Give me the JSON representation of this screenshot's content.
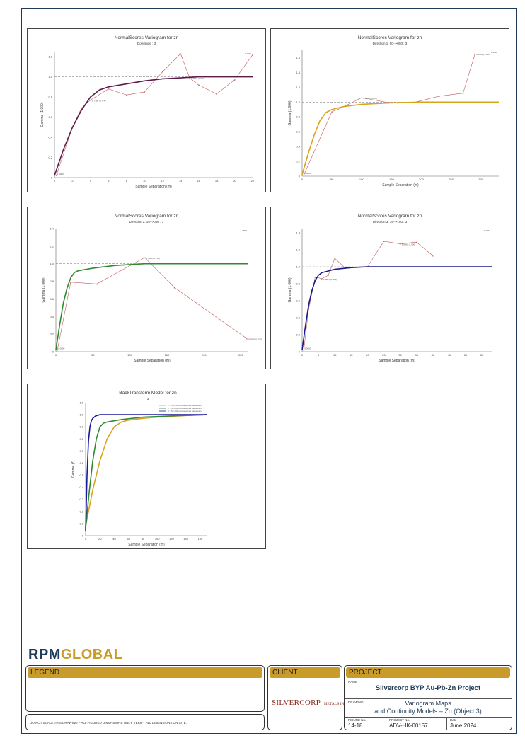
{
  "charts": [
    {
      "title": "NormalScores  Variogram for zn",
      "subtitle": "Downhole : 3",
      "xlabel": "Sample Separation (m)",
      "ylabel": "Gamma (1.000)",
      "x_ticks": [
        "0",
        "2",
        "4",
        "6",
        "8",
        "10",
        "12",
        "14",
        "16",
        "18",
        "20",
        "22"
      ],
      "y_ticks": [
        "0",
        "0.2",
        "0.4",
        "0.6",
        "0.8",
        "1.0",
        "1.2"
      ],
      "first_label": "0.0000",
      "near_label": "0.7766 (0.774)",
      "sill_label": "0.9894 (0.997)",
      "top_label": "1.2345",
      "model_color": "#5a1a4a",
      "exp_color": "#c25a5a"
    },
    {
      "title": "NormalScores  Variogram for zn",
      "subtitle": "Direction 1: 00-->050 : 3",
      "xlabel": "Sample Separation (m)",
      "ylabel": "Gamma (1.000)",
      "x_ticks": [
        "0",
        "50",
        "100",
        "150",
        "200",
        "250",
        "300"
      ],
      "y_ticks": [
        "0",
        "0.2",
        "0.4",
        "0.6",
        "0.8",
        "1.0",
        "1.2",
        "1.4",
        "1.6"
      ],
      "first_label": "0.0000",
      "near_label": "0.8853 (0.880)",
      "sill_label": "0.9924 (1.000)",
      "top_label": "1.6540",
      "model_color": "#d9a31a",
      "exp_color": "#c25a5a"
    },
    {
      "title": "NormalScores  Variogram for zn",
      "subtitle": "Direction 2: 15-->060 : 3",
      "xlabel": "Sample Separation (m)",
      "ylabel": "Gamma (1.000)",
      "x_ticks": [
        "0",
        "50",
        "100",
        "150",
        "200",
        "250"
      ],
      "y_ticks": [
        "0",
        "0.2",
        "0.4",
        "0.6",
        "0.8",
        "1.0",
        "1.2",
        "1.4"
      ],
      "first_label": "0.0000",
      "near_label": "0.7890 (0.745)",
      "sill_label": "0.9920 (1.000)",
      "top_label": "1.0834",
      "model_color": "#2e8a2e",
      "exp_color": "#c25a5a"
    },
    {
      "title": "NormalScores  Variogram for zn",
      "subtitle": "Direction 3: 75-->160 : 3",
      "xlabel": "Sample Separation (m)",
      "ylabel": "Gamma (1.000)",
      "x_ticks": [
        "0",
        "5",
        "10",
        "15",
        "20",
        "25",
        "30",
        "35",
        "40",
        "45",
        "50",
        "55"
      ],
      "y_ticks": [
        "0",
        "0.2",
        "0.4",
        "0.6",
        "0.8",
        "1.0",
        "1.2",
        "1.4"
      ],
      "first_label": "0.0000",
      "near_label": "0.8654 (0.836)",
      "sill_label": "1.0050 (1.000)",
      "top_label": "1.2832",
      "model_color": "#1a1a8a",
      "exp_color": "#c25a5a"
    }
  ],
  "chart_data": [
    {
      "type": "line",
      "title": "NormalScores  Variogram for zn",
      "subtitle": "Downhole : 3",
      "xlabel": "Sample Separation (m)",
      "ylabel": "Gamma (1.000)",
      "xlim": [
        0,
        22
      ],
      "ylim": [
        0,
        1.25
      ],
      "sill": 1.0,
      "series": [
        {
          "name": "experimental",
          "x": [
            0.2,
            2,
            3,
            4,
            6,
            8,
            10,
            12,
            14,
            15,
            16,
            18,
            20,
            22
          ],
          "values": [
            0.02,
            0.5,
            0.69,
            0.77,
            0.88,
            0.82,
            0.85,
            1.05,
            1.23,
            0.99,
            0.92,
            0.83,
            0.97,
            1.22
          ]
        },
        {
          "name": "model",
          "x": [
            0,
            1,
            2,
            3,
            4,
            5,
            6,
            8,
            10,
            12,
            14,
            16,
            18,
            20,
            22
          ],
          "values": [
            0.02,
            0.28,
            0.5,
            0.67,
            0.8,
            0.87,
            0.9,
            0.93,
            0.96,
            0.98,
            0.99,
            1.0,
            1.0,
            1.0,
            1.0
          ]
        }
      ]
    },
    {
      "type": "line",
      "title": "NormalScores  Variogram for zn",
      "subtitle": "Direction 1: 00-->050 : 3",
      "xlabel": "Sample Separation (m)",
      "ylabel": "Gamma (1.000)",
      "xlim": [
        0,
        330
      ],
      "ylim": [
        0,
        1.7
      ],
      "sill": 1.0,
      "series": [
        {
          "name": "experimental",
          "x": [
            3,
            50,
            60,
            100,
            140,
            160,
            190,
            230,
            270,
            290
          ],
          "values": [
            0.02,
            0.87,
            0.9,
            1.06,
            1.0,
            0.99,
            1.0,
            1.08,
            1.12,
            1.65
          ]
        },
        {
          "name": "model",
          "x": [
            0,
            10,
            20,
            30,
            40,
            50,
            70,
            100,
            150,
            200,
            250,
            330
          ],
          "values": [
            0.02,
            0.3,
            0.55,
            0.75,
            0.86,
            0.9,
            0.94,
            0.97,
            0.99,
            1.0,
            1.0,
            1.0
          ]
        }
      ]
    },
    {
      "type": "line",
      "title": "NormalScores  Variogram for zn",
      "subtitle": "Direction 2: 15-->060 : 3",
      "xlabel": "Sample Separation (m)",
      "ylabel": "Gamma (1.000)",
      "xlim": [
        0,
        260
      ],
      "ylim": [
        0,
        1.4
      ],
      "sill": 1.0,
      "series": [
        {
          "name": "experimental",
          "x": [
            2,
            20,
            55,
            120,
            160,
            258
          ],
          "values": [
            0.02,
            0.79,
            0.77,
            1.07,
            0.73,
            0.15
          ]
        },
        {
          "name": "model",
          "x": [
            0,
            5,
            10,
            15,
            20,
            25,
            30,
            50,
            80,
            120,
            160,
            200,
            260
          ],
          "values": [
            0.02,
            0.3,
            0.55,
            0.72,
            0.84,
            0.9,
            0.92,
            0.95,
            0.98,
            1.0,
            1.0,
            1.0,
            1.0
          ]
        }
      ]
    },
    {
      "type": "line",
      "title": "NormalScores  Variogram for zn",
      "subtitle": "Direction 3: 75-->160 : 3",
      "xlabel": "Sample Separation (m)",
      "ylabel": "Gamma (1.000)",
      "xlim": [
        0,
        58
      ],
      "ylim": [
        0,
        1.45
      ],
      "sill": 1.0,
      "series": [
        {
          "name": "experimental",
          "x": [
            0.5,
            2,
            4,
            6,
            8,
            10,
            13,
            20,
            25,
            30,
            35,
            40
          ],
          "values": [
            0.02,
            0.5,
            0.88,
            0.86,
            0.9,
            1.1,
            0.99,
            1.0,
            1.3,
            1.27,
            1.29,
            1.13
          ]
        },
        {
          "name": "model",
          "x": [
            0,
            1,
            2,
            3,
            4,
            5,
            6,
            8,
            10,
            15,
            20,
            30,
            40,
            58
          ],
          "values": [
            0.02,
            0.3,
            0.55,
            0.72,
            0.84,
            0.9,
            0.93,
            0.95,
            0.97,
            0.99,
            1.0,
            1.0,
            1.0,
            1.0
          ]
        }
      ]
    },
    {
      "type": "line",
      "title": "BackTransform Model for zn",
      "subtitle": "3",
      "xlabel": "Sample Separation (m)",
      "ylabel": "Gamma (*)",
      "xlim": [
        0,
        170
      ],
      "ylim": [
        0,
        1.1
      ],
      "x_ticks": [
        "0",
        "20",
        "40",
        "60",
        "80",
        "100",
        "120",
        "140",
        "160"
      ],
      "y_ticks": [
        "0",
        "0.1",
        "0.2",
        "0.3",
        "0.4",
        "0.5",
        "0.6",
        "0.7",
        "0.8",
        "0.9",
        "1.0",
        "1.1"
      ],
      "legend": [
        "1: 15->050 normalscores variogram",
        "2: 15->060 normalscores variogram",
        "3: 75->160 normalscores variogram"
      ],
      "series": [
        {
          "name": "1: 15->050 normalscores variogram",
          "color": "#d9a31a",
          "x": [
            0,
            10,
            20,
            30,
            40,
            50,
            60,
            80,
            100,
            130,
            170
          ],
          "values": [
            0.08,
            0.38,
            0.62,
            0.8,
            0.9,
            0.94,
            0.955,
            0.97,
            0.98,
            0.99,
            1.0
          ]
        },
        {
          "name": "2: 15->060 normalscores variogram",
          "color": "#2e8a2e",
          "x": [
            0,
            5,
            10,
            15,
            20,
            25,
            30,
            50,
            80,
            120,
            170
          ],
          "values": [
            0.06,
            0.36,
            0.62,
            0.8,
            0.9,
            0.93,
            0.94,
            0.96,
            0.98,
            0.99,
            1.0
          ]
        },
        {
          "name": "3: 75->160 normalscores variogram",
          "color": "#1a1a9a",
          "x": [
            0,
            2,
            4,
            6,
            8,
            10,
            14,
            20,
            40,
            100,
            170
          ],
          "values": [
            0.04,
            0.5,
            0.78,
            0.9,
            0.95,
            0.97,
            0.99,
            1.0,
            1.0,
            1.0,
            1.0
          ]
        }
      ]
    }
  ],
  "logo": {
    "rpm": "RPM",
    "global": "GLOBAL"
  },
  "legend": {
    "header": "LEGEND"
  },
  "disclaimer": "DO NOT SCALE THIS DRAWING – ALL FIGURED DIMENSIONS ONLY. VERIFY ALL DIMENSIONS ON SITE.",
  "client": {
    "header": "CLIENT",
    "logo_text": "SILVERCORP",
    "logo_suffix": "METALS INC."
  },
  "project": {
    "header": "PROJECT",
    "name_label": "NAME",
    "name": "Silvercorp BYP Au-Pb-Zn Project",
    "drawing_label": "DRAWING",
    "drawing_line1": "Variogram Maps",
    "drawing_line2": "and Continuity Models – Zn (Object 3)",
    "figure_label": "FIGURE No.",
    "figure": "14-18",
    "project_no_label": "PROJECT No.",
    "project_no": "ADV-HK-00157",
    "date_label": "Date",
    "date": "June 2024"
  }
}
